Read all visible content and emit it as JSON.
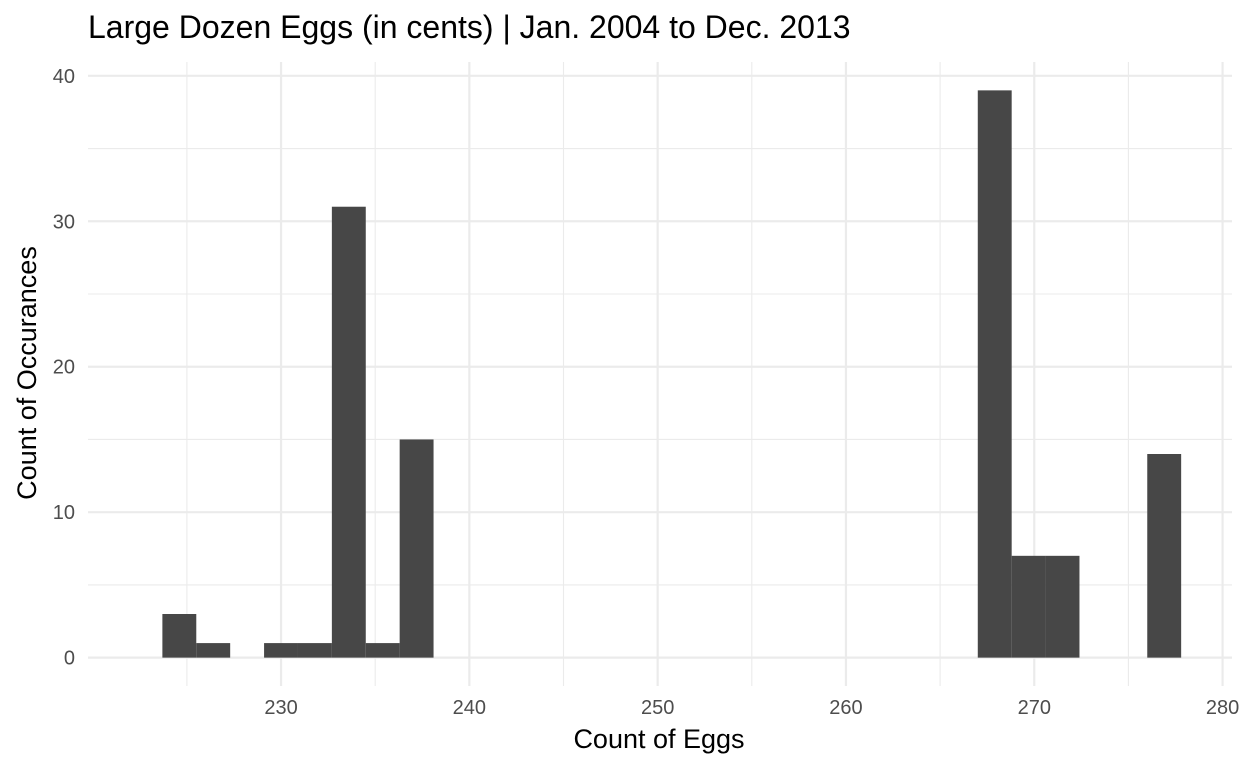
{
  "chart_data": {
    "type": "bar",
    "title": "Large Dozen Eggs (in cents) | Jan. 2004 to Dec. 2013",
    "xlabel": "Count of Eggs",
    "ylabel": "Count of Occurances",
    "xlim": [
      219.75,
      280.5
    ],
    "ylim": [
      -1.95,
      40.95
    ],
    "x_ticks": [
      230,
      240,
      250,
      260,
      270,
      280
    ],
    "x_tick_labels": [
      "230",
      "240",
      "250",
      "260",
      "270",
      "280"
    ],
    "y_ticks": [
      0,
      10,
      20,
      30,
      40
    ],
    "y_tick_labels": [
      "0",
      "10",
      "20",
      "30",
      "40"
    ],
    "grid": true,
    "legend": "none",
    "bar_color": "#474747",
    "bins": [
      {
        "x0": 223.7,
        "x1": 225.5,
        "count": 3
      },
      {
        "x0": 225.5,
        "x1": 227.3,
        "count": 1
      },
      {
        "x0": 227.3,
        "x1": 229.1,
        "count": 0
      },
      {
        "x0": 229.1,
        "x1": 230.9,
        "count": 1
      },
      {
        "x0": 230.9,
        "x1": 232.7,
        "count": 1
      },
      {
        "x0": 232.7,
        "x1": 234.5,
        "count": 31
      },
      {
        "x0": 234.5,
        "x1": 236.3,
        "count": 1
      },
      {
        "x0": 236.3,
        "x1": 238.1,
        "count": 15
      },
      {
        "x0": 267.0,
        "x1": 268.8,
        "count": 39
      },
      {
        "x0": 268.8,
        "x1": 270.6,
        "count": 7
      },
      {
        "x0": 270.6,
        "x1": 272.4,
        "count": 7
      },
      {
        "x0": 276.0,
        "x1": 277.8,
        "count": 14
      }
    ]
  }
}
